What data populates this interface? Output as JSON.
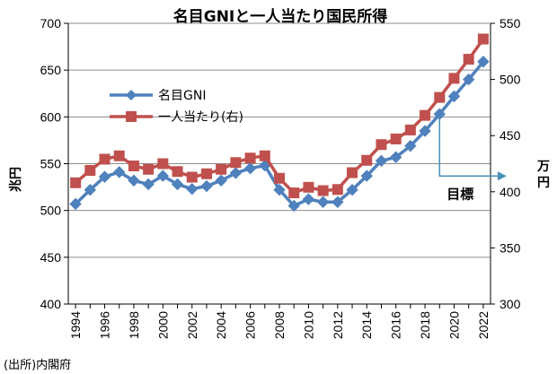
{
  "chart_data": {
    "type": "line",
    "title": "名目GNIと一人当たり国民所得",
    "left_axis_label": "兆円",
    "right_axis_label": "万円",
    "source": "(出所)内閣府",
    "annotation": "目標",
    "x": [
      1994,
      1995,
      1996,
      1997,
      1998,
      1999,
      2000,
      2001,
      2002,
      2003,
      2004,
      2005,
      2006,
      2007,
      2008,
      2009,
      2010,
      2011,
      2012,
      2013,
      2014,
      2015,
      2016,
      2017,
      2018,
      2019,
      2020,
      2021,
      2022
    ],
    "x_tick_labels": [
      "1994",
      "1996",
      "1998",
      "2000",
      "2002",
      "2004",
      "2006",
      "2008",
      "2010",
      "2012",
      "2014",
      "2016",
      "2018",
      "2020",
      "2022"
    ],
    "y_left_ticks": [
      "400",
      "450",
      "500",
      "550",
      "600",
      "650",
      "700"
    ],
    "y_right_ticks": [
      "300",
      "350",
      "400",
      "450",
      "500",
      "550"
    ],
    "ylim_left": [
      400,
      700
    ],
    "ylim_right": [
      300,
      550
    ],
    "grid": "horizontal",
    "legend_position": "upper-left",
    "series": [
      {
        "name": "名目GNI",
        "axis": "left",
        "color": "#4f81bd",
        "marker": "diamond",
        "values": [
          507,
          522,
          536,
          541,
          532,
          528,
          537,
          528,
          523,
          526,
          532,
          540,
          545,
          548,
          522,
          505,
          512,
          509,
          509,
          522,
          537,
          553,
          557,
          569,
          585,
          603,
          622,
          640,
          659
        ]
      },
      {
        "name": "一人当たり(右)",
        "axis": "right",
        "color": "#c0504d",
        "marker": "square",
        "values": [
          408,
          419,
          429,
          432,
          423,
          420,
          425,
          418,
          413,
          416,
          420,
          426,
          430,
          432,
          412,
          399,
          404,
          401,
          402,
          417,
          428,
          442,
          447,
          455,
          468,
          484,
          501,
          518,
          536
        ]
      }
    ],
    "target_arrow": {
      "x": 2019,
      "y_left": 600,
      "points_to_right_axis_value": 414
    }
  }
}
